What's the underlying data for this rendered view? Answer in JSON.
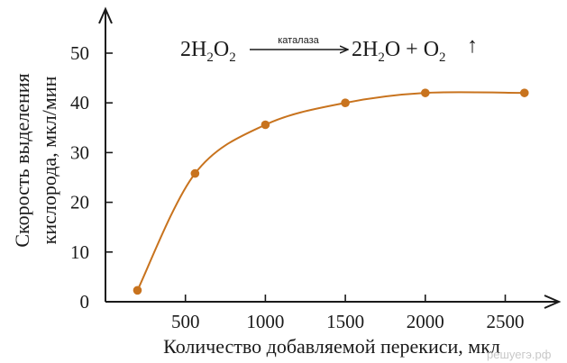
{
  "chart_data": {
    "type": "line",
    "title": "",
    "xlabel": "Количество добавляемой перекиси, мкл",
    "ylabel_line1": "Скорость выделения",
    "ylabel_line2": "кислорода, мкл/мин",
    "xlim": [
      0,
      2800
    ],
    "ylim": [
      0,
      55
    ],
    "x_ticks": [
      500,
      1000,
      1500,
      2000,
      2500
    ],
    "y_ticks": [
      0,
      10,
      20,
      30,
      40,
      50
    ],
    "grid": false,
    "series": [
      {
        "x": [
          200,
          560,
          1000,
          1500,
          2000,
          2620
        ],
        "y": [
          2.3,
          25.8,
          35.6,
          40,
          42,
          42
        ]
      }
    ],
    "color": "#c8731e",
    "annotation": {
      "reactant_coef": "2H",
      "reactant_h_sub": "2",
      "reactant_o": "O",
      "reactant_o_sub": "2",
      "catalyst": "каталаза",
      "product_coef": "2H",
      "product_h_sub": "2",
      "product_rest": "O + O",
      "product_o_sub": "2",
      "gas_arrow": "↑"
    }
  },
  "watermark": "решуегэ.рф"
}
